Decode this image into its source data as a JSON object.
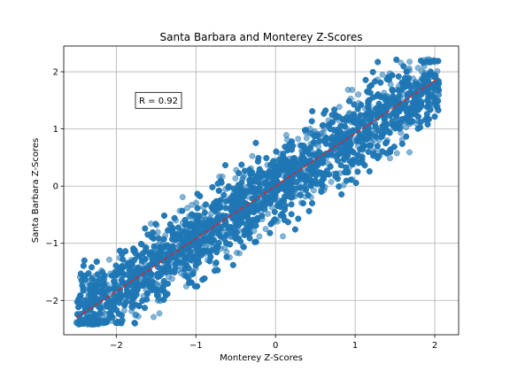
{
  "chart_data": {
    "type": "scatter",
    "title": "Santa Barbara and Monterey Z-Scores",
    "xlabel": "Monterey Z-Scores",
    "ylabel": "Santa Barbara Z-Scores",
    "xlim": [
      -2.66,
      2.3
    ],
    "ylim": [
      -2.6,
      2.45
    ],
    "xticks": [
      -2,
      -1,
      0,
      1,
      2
    ],
    "yticks": [
      -2,
      -1,
      0,
      1,
      2
    ],
    "xtick_labels": [
      "−2",
      "−1",
      "0",
      "1",
      "2"
    ],
    "ytick_labels": [
      "−2",
      "−1",
      "0",
      "1",
      "2"
    ],
    "grid": true,
    "annotation": "R = 0.92",
    "series": [
      {
        "kind": "scatter",
        "color": "#1f77b4",
        "alpha": 0.55,
        "point_count": 6000,
        "x_range": [
          -2.5,
          2.05
        ],
        "correlation": 0.92
      },
      {
        "kind": "fit-line",
        "color": "#d62728",
        "style": "dashed",
        "x": [
          -2.5,
          2.05
        ],
        "y": [
          -2.3,
          1.89
        ]
      }
    ]
  }
}
